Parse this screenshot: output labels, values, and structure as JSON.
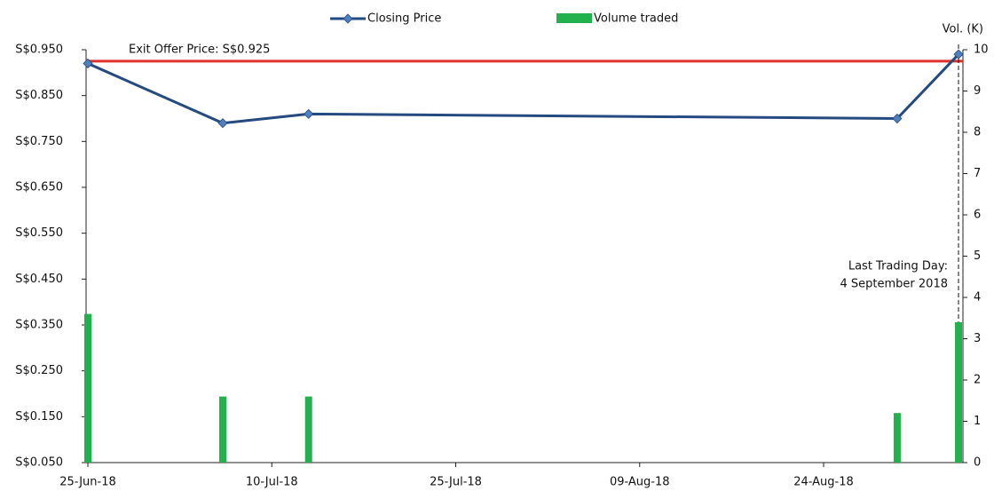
{
  "chart_data": {
    "type": "line",
    "x": [
      "2018-06-25",
      "2018-07-06",
      "2018-07-13",
      "2018-08-30",
      "2018-09-04"
    ],
    "series": [
      {
        "name": "Closing Price",
        "color": "#244a7f",
        "marker_color": "#4f81bd",
        "values": [
          0.92,
          0.79,
          0.81,
          0.8,
          0.94
        ]
      },
      {
        "name": "Volume traded",
        "type": "bar",
        "axis": "y2",
        "color": "#22b14c",
        "values": [
          3.6,
          1.6,
          1.6,
          1.2,
          3.4
        ]
      }
    ],
    "xlim": [
      "2018-06-25",
      "2018-09-04"
    ],
    "xticks": [
      {
        "value": "2018-06-25",
        "label": "25-Jun-18"
      },
      {
        "value": "2018-07-10",
        "label": "10-Jul-18"
      },
      {
        "value": "2018-07-25",
        "label": "25-Jul-18"
      },
      {
        "value": "2018-08-09",
        "label": "09-Aug-18"
      },
      {
        "value": "2018-08-24",
        "label": "24-Aug-18"
      }
    ],
    "ylim": [
      0.05,
      0.95
    ],
    "yticks": [
      {
        "value": 0.05,
        "label": "S$0.050"
      },
      {
        "value": 0.15,
        "label": "S$0.150"
      },
      {
        "value": 0.25,
        "label": "S$0.250"
      },
      {
        "value": 0.35,
        "label": "S$0.350"
      },
      {
        "value": 0.45,
        "label": "S$0.450"
      },
      {
        "value": 0.55,
        "label": "S$0.550"
      },
      {
        "value": 0.65,
        "label": "S$0.650"
      },
      {
        "value": 0.75,
        "label": "S$0.750"
      },
      {
        "value": 0.85,
        "label": "S$0.850"
      },
      {
        "value": 0.95,
        "label": "S$0.950"
      }
    ],
    "y2label": "Vol. (K)",
    "y2lim": [
      0,
      10
    ],
    "y2ticks": [
      0,
      1,
      2,
      3,
      4,
      5,
      6,
      7,
      8,
      9,
      10
    ],
    "reference_line": {
      "value": 0.925,
      "label": "Exit Offer Price: S$0.925",
      "color": "#e0302a"
    },
    "event_line": {
      "x": "2018-09-04",
      "label": [
        "Last Trading Day:",
        "4 September 2018"
      ]
    },
    "legend": "top"
  }
}
